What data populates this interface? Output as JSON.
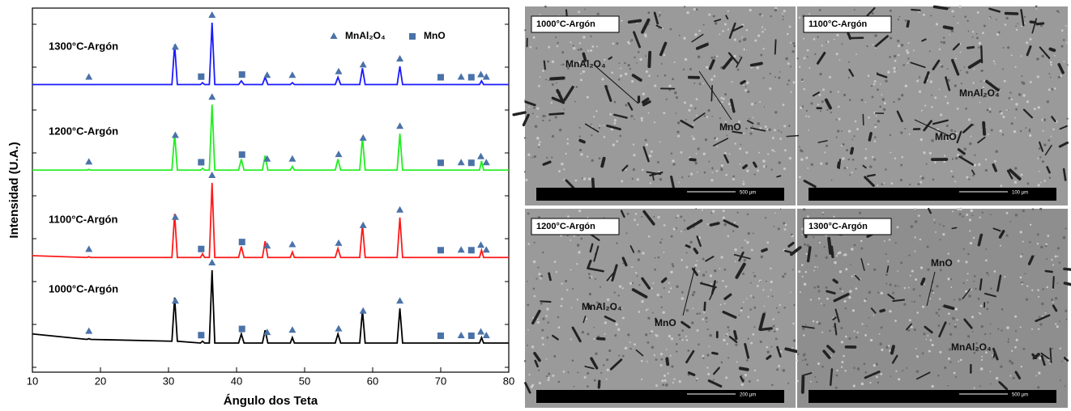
{
  "chart_data": {
    "type": "line",
    "xlabel": "Ángulo dos Teta",
    "ylabel": "Intensidad (U.A.)",
    "xlim": [
      10,
      80
    ],
    "xticks": [
      10,
      20,
      30,
      40,
      50,
      60,
      70,
      80
    ],
    "ylim": [
      0,
      100
    ],
    "x": [
      10,
      18,
      18.3,
      18.6,
      30.5,
      30.9,
      31.3,
      34.7,
      35.0,
      35.3,
      36.0,
      36.4,
      36.8,
      40.3,
      40.7,
      41.1,
      43.8,
      44.2,
      44.6,
      47.9,
      48.2,
      48.5,
      54.5,
      54.9,
      55.3,
      58.1,
      58.5,
      58.9,
      63.6,
      64.0,
      64.4,
      75.7,
      76.0,
      76.3,
      80
    ],
    "series": [
      {
        "name": "1000°C-Argón",
        "color": "#000000",
        "values": [
          10.5,
          9,
          9.2,
          9,
          8.5,
          20.5,
          8.5,
          8,
          8.5,
          8,
          8,
          28,
          8,
          8,
          10.5,
          8,
          8,
          11.5,
          8,
          8,
          9.5,
          8,
          8,
          10.5,
          8,
          8,
          17,
          8,
          8,
          17.5,
          8,
          8,
          9.5,
          8,
          8
        ]
      },
      {
        "name": "1100°C-Argón",
        "color": "#ff1a1a",
        "values": [
          32,
          31.5,
          31.7,
          31.5,
          31.5,
          43.5,
          31.5,
          31.5,
          32.5,
          31.5,
          31.5,
          52,
          31.5,
          31.5,
          34.5,
          31.5,
          31.5,
          36,
          31.5,
          31.5,
          33,
          31.5,
          31.5,
          34,
          31.5,
          31.5,
          40.5,
          31.5,
          31.5,
          42.5,
          31.5,
          31.5,
          33.5,
          31.5,
          31.5
        ]
      },
      {
        "name": "1200°C-Argón",
        "color": "#22ee22",
        "values": [
          55.5,
          55.5,
          55.7,
          55.5,
          55.5,
          65.5,
          55.5,
          55.5,
          56,
          55.5,
          55.5,
          73.5,
          55.5,
          55.5,
          58.5,
          55.5,
          55.5,
          59.5,
          55.5,
          55.5,
          56.5,
          55.5,
          55.5,
          58.5,
          55.5,
          55.5,
          64.5,
          55.5,
          55.5,
          65.5,
          55.5,
          55.5,
          58,
          55.5,
          55.5
        ]
      },
      {
        "name": "1300°C-Argón",
        "color": "#1a1aff",
        "values": [
          79,
          79,
          79,
          79,
          79,
          90,
          79,
          79,
          79.5,
          79,
          79,
          96,
          79,
          79,
          80,
          79,
          79,
          81,
          79,
          79,
          79.5,
          79,
          79,
          81,
          79,
          79,
          83.5,
          79,
          79,
          84,
          79,
          79,
          80,
          79,
          79
        ]
      }
    ],
    "phases": [
      {
        "name": "MnAl₂O₄",
        "marker": "triangle",
        "color": "#4a72a8",
        "x": [
          18.3,
          31.0,
          36.4,
          44.5,
          48.2,
          55.0,
          58.6,
          64.0,
          73.0,
          75.9,
          76.7
        ]
      },
      {
        "name": "MnO",
        "marker": "square",
        "color": "#4a72a8",
        "x": [
          34.8,
          40.8,
          70.0,
          74.5
        ]
      }
    ]
  },
  "micrographs": [
    {
      "title": "1000°C-Argón",
      "labels": [
        "MnAl₂O₄",
        "MnO"
      ],
      "scale": "500 µm"
    },
    {
      "title": "1100°C-Argón",
      "labels": [
        "MnAl₂O₄",
        "MnO"
      ],
      "scale": "100 µm"
    },
    {
      "title": "1200°C-Argón",
      "labels": [
        "MnAl₂O₄",
        "MnO"
      ],
      "scale": "200 µm"
    },
    {
      "title": "1300°C-Argón",
      "labels": [
        "MnO",
        "MnAl₂O₄"
      ],
      "scale": "500 µm"
    }
  ]
}
